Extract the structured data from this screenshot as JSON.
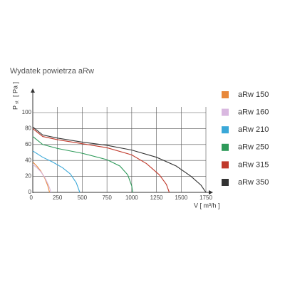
{
  "chart_data": {
    "type": "line",
    "title": "Wydatek powietrza aRw",
    "y_label": {
      "symbol": "P",
      "subscript": "st",
      "unit": "[ Pa ]"
    },
    "x_label": "V [ m³/h ]",
    "xlim": [
      0,
      1750
    ],
    "xticks": [
      0,
      250,
      500,
      750,
      1000,
      1250,
      1500,
      1750
    ],
    "ylim": [
      0,
      100
    ],
    "yticks": [
      0,
      20,
      40,
      60,
      80,
      100
    ],
    "grid": true,
    "series": [
      {
        "name": "aRw 150",
        "color": "#e8883a",
        "x": [
          0,
          40,
          80,
          120,
          150,
          170
        ],
        "values": [
          38,
          33,
          27,
          18,
          9,
          0
        ]
      },
      {
        "name": "aRw 160",
        "color": "#d9b8e0",
        "x": [
          0,
          40,
          80,
          120,
          160,
          185
        ],
        "values": [
          35,
          31,
          26,
          19,
          9,
          0
        ]
      },
      {
        "name": "aRw 210",
        "color": "#3aa8d8",
        "x": [
          0,
          100,
          200,
          300,
          380,
          440,
          475
        ],
        "values": [
          52,
          44,
          38,
          31,
          23,
          12,
          0
        ]
      },
      {
        "name": "aRw 250",
        "color": "#2e9a5a",
        "x": [
          0,
          100,
          250,
          500,
          750,
          880,
          960,
          1000,
          1010
        ],
        "values": [
          70,
          60,
          55,
          49,
          41,
          33,
          22,
          8,
          0
        ]
      },
      {
        "name": "aRw 315",
        "color": "#c0392b",
        "x": [
          0,
          100,
          250,
          500,
          750,
          1000,
          1150,
          1280,
          1350,
          1380
        ],
        "values": [
          80,
          70,
          66,
          61,
          56,
          47,
          36,
          22,
          10,
          0
        ]
      },
      {
        "name": "aRw 350",
        "color": "#333333",
        "x": [
          0,
          100,
          250,
          500,
          750,
          1000,
          1250,
          1450,
          1600,
          1700,
          1750
        ],
        "values": [
          82,
          72,
          68,
          63,
          59,
          53,
          44,
          33,
          20,
          9,
          0
        ]
      }
    ]
  }
}
